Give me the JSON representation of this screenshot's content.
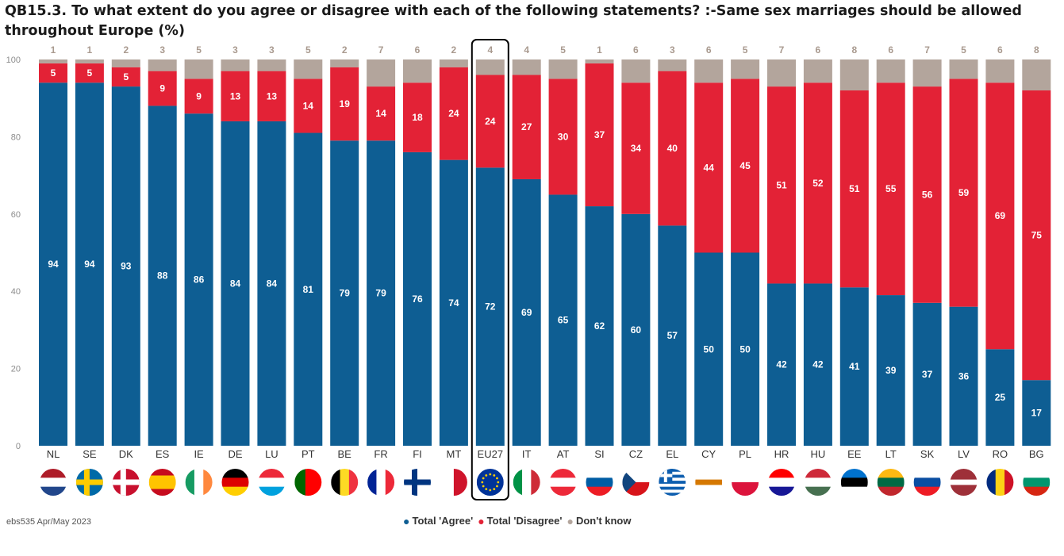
{
  "title": "QB15.3. To what extent do you agree or disagree with each of the following statements? :-Same sex marriages should be allowed throughout Europe (%)",
  "source": "ebs535 Apr/May 2023",
  "colors": {
    "agree": "#0e5e93",
    "disagree": "#e32236",
    "dontknow": "#b3a59c",
    "axis": "#8c8c8c",
    "highlight": "#000000"
  },
  "legend": [
    {
      "label": "Total 'Agree'",
      "color": "#0e5e93"
    },
    {
      "label": "Total 'Disagree'",
      "color": "#e32236"
    },
    {
      "label": "Don't know",
      "color": "#b3a59c"
    }
  ],
  "chart_data": {
    "type": "bar",
    "stacked": true,
    "categories": [
      "NL",
      "SE",
      "DK",
      "ES",
      "IE",
      "DE",
      "LU",
      "PT",
      "BE",
      "FR",
      "FI",
      "MT",
      "EU27",
      "IT",
      "AT",
      "SI",
      "CZ",
      "EL",
      "CY",
      "PL",
      "HR",
      "HU",
      "EE",
      "LT",
      "SK",
      "LV",
      "RO",
      "BG"
    ],
    "highlight": "EU27",
    "series": [
      {
        "name": "Total 'Agree'",
        "values": [
          94,
          94,
          93,
          88,
          86,
          84,
          84,
          81,
          79,
          79,
          76,
          74,
          72,
          69,
          65,
          62,
          60,
          57,
          50,
          50,
          42,
          42,
          41,
          39,
          37,
          36,
          25,
          17
        ]
      },
      {
        "name": "Total 'Disagree'",
        "values": [
          5,
          5,
          5,
          9,
          9,
          13,
          13,
          14,
          19,
          14,
          18,
          24,
          24,
          27,
          30,
          37,
          34,
          40,
          44,
          45,
          51,
          52,
          51,
          55,
          56,
          59,
          69,
          75
        ]
      },
      {
        "name": "Don't know",
        "values": [
          1,
          1,
          2,
          3,
          5,
          3,
          3,
          5,
          2,
          7,
          6,
          2,
          4,
          4,
          5,
          1,
          6,
          3,
          6,
          5,
          7,
          6,
          8,
          6,
          7,
          5,
          6,
          8
        ]
      }
    ],
    "yticks": [
      0,
      20,
      40,
      60,
      80,
      100
    ],
    "ylim": [
      0,
      100
    ]
  }
}
